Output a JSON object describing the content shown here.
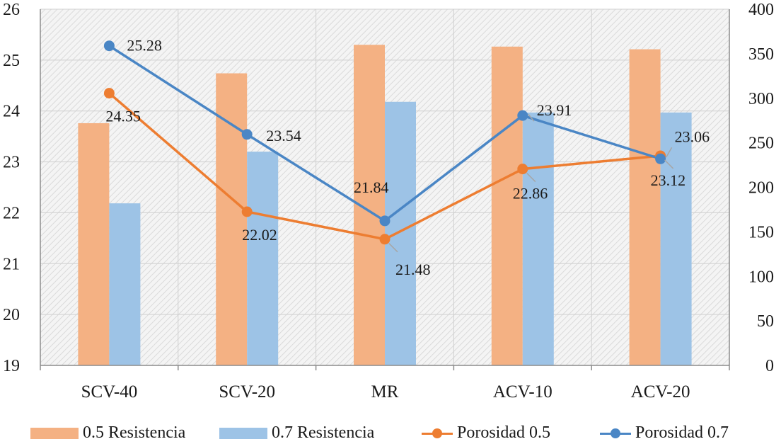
{
  "chart_data": {
    "type": "bar",
    "categories": [
      "SCV-40",
      "SCV-20",
      "MR",
      "ACV-10",
      "ACV-20"
    ],
    "y_left": {
      "min": 19,
      "max": 26,
      "step": 1,
      "ticks": [
        "19",
        "20",
        "21",
        "22",
        "23",
        "24",
        "25",
        "26"
      ]
    },
    "y_right": {
      "min": 0,
      "max": 400,
      "step": 50,
      "ticks": [
        "0",
        "50",
        "100",
        "150",
        "200",
        "250",
        "300",
        "350",
        "400"
      ]
    },
    "series": [
      {
        "name": "0.5 Resistencia",
        "type": "bar",
        "axis": "right",
        "color": "#f4b183",
        "values": [
          272,
          328,
          360,
          358,
          355
        ]
      },
      {
        "name": "0.7 Resistencia",
        "type": "bar",
        "axis": "right",
        "color": "#9dc3e6",
        "values": [
          182,
          240,
          296,
          null,
          284
        ]
      },
      {
        "name": "Porosidad 0.5",
        "type": "line",
        "axis": "left",
        "color": "#ed7d31",
        "values": [
          24.35,
          22.02,
          21.48,
          22.86,
          23.12
        ],
        "labels": [
          "24.35",
          "22.02",
          "21.48",
          "22.86",
          "23.12"
        ]
      },
      {
        "name": "Porosidad 0.7",
        "type": "line",
        "axis": "left",
        "color": "#4a86c5",
        "values": [
          25.28,
          23.54,
          21.84,
          23.91,
          23.06
        ],
        "labels": [
          "25.28",
          "23.54",
          "21.84",
          "23.91",
          "23.06"
        ]
      }
    ],
    "grid": true,
    "legend_position": "bottom"
  }
}
